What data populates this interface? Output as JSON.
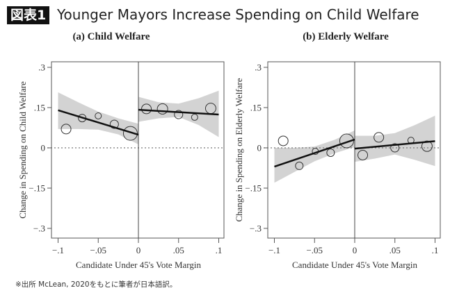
{
  "figure": {
    "badge": "図表1",
    "title": "Younger Mayors Increase Spending on Child Welfare",
    "footnote": "※出所 McLean, 2020をもとに筆者が日本語訳。"
  },
  "chart_data": [
    {
      "type": "scatter",
      "title": "(a) Child Welfare",
      "xlabel": "Candidate Under 45's Vote Margin",
      "ylabel": "Change in Spending on Child Welfare",
      "xlim": [
        -0.1,
        0.1
      ],
      "ylim": [
        -0.3,
        0.3
      ],
      "xticks": [
        -0.1,
        -0.05,
        0,
        0.05,
        0.1
      ],
      "xtick_labels": [
        "−.1",
        "−.05",
        "0",
        ".05",
        ".1"
      ],
      "yticks": [
        0.3,
        0.15,
        0,
        -0.15,
        -0.3
      ],
      "ytick_labels": [
        ".3",
        ".15",
        "0",
        "−.15",
        "−.3"
      ],
      "grid": false,
      "cutoff": 0,
      "points": [
        {
          "x": -0.09,
          "y": 0.07,
          "size": 7
        },
        {
          "x": -0.07,
          "y": 0.111,
          "size": 5.5
        },
        {
          "x": -0.05,
          "y": 0.119,
          "size": 4.5
        },
        {
          "x": -0.03,
          "y": 0.088,
          "size": 6
        },
        {
          "x": -0.01,
          "y": 0.054,
          "size": 10
        },
        {
          "x": 0.01,
          "y": 0.145,
          "size": 7
        },
        {
          "x": 0.03,
          "y": 0.145,
          "size": 7.5
        },
        {
          "x": 0.05,
          "y": 0.124,
          "size": 6
        },
        {
          "x": 0.07,
          "y": 0.114,
          "size": 4.5
        },
        {
          "x": 0.09,
          "y": 0.147,
          "size": 7.5
        }
      ],
      "fits": [
        {
          "x": [
            -0.1,
            0
          ],
          "y": [
            0.14,
            0.049
          ]
        },
        {
          "x": [
            0,
            0.1
          ],
          "y": [
            0.142,
            0.124
          ]
        }
      ],
      "ci_bands": [
        {
          "x": [
            -0.1,
            -0.075,
            -0.05,
            -0.025,
            0
          ],
          "upper": [
            0.207,
            0.17,
            0.135,
            0.11,
            0.09
          ],
          "lower": [
            0.07,
            0.07,
            0.068,
            0.05,
            0.013
          ]
        },
        {
          "x": [
            0,
            0.025,
            0.05,
            0.075,
            0.1
          ],
          "upper": [
            0.19,
            0.17,
            0.165,
            0.185,
            0.213
          ],
          "lower": [
            0.097,
            0.11,
            0.115,
            0.085,
            0.04
          ]
        }
      ]
    },
    {
      "type": "scatter",
      "title": "(b) Elderly Welfare",
      "xlabel": "Candidate Under 45's Vote Margin",
      "ylabel": "Change in Spending on Elderly Welfare",
      "xlim": [
        -0.1,
        0.1
      ],
      "ylim": [
        -0.3,
        0.3
      ],
      "xticks": [
        -0.1,
        -0.05,
        0,
        0.05,
        0.1
      ],
      "xtick_labels": [
        "−.1",
        "−.05",
        "0",
        ".05",
        ".1"
      ],
      "yticks": [
        0.3,
        0.15,
        0,
        -0.15,
        -0.3
      ],
      "ytick_labels": [
        ".3",
        ".15",
        "0",
        "−.15",
        "−.3"
      ],
      "grid": false,
      "cutoff": 0,
      "points": [
        {
          "x": -0.089,
          "y": 0.026,
          "size": 7
        },
        {
          "x": -0.069,
          "y": -0.067,
          "size": 5.5
        },
        {
          "x": -0.049,
          "y": -0.013,
          "size": 4.5
        },
        {
          "x": -0.03,
          "y": -0.018,
          "size": 5.5
        },
        {
          "x": -0.01,
          "y": 0.026,
          "size": 10
        },
        {
          "x": 0.01,
          "y": -0.027,
          "size": 7
        },
        {
          "x": 0.03,
          "y": 0.039,
          "size": 7
        },
        {
          "x": 0.05,
          "y": 0.0,
          "size": 6
        },
        {
          "x": 0.07,
          "y": 0.028,
          "size": 4.5
        },
        {
          "x": 0.09,
          "y": 0.006,
          "size": 7.5
        }
      ],
      "fits": [
        {
          "x": [
            -0.1,
            0
          ],
          "y": [
            -0.07,
            0.031
          ]
        },
        {
          "x": [
            0,
            0.1
          ],
          "y": [
            -0.003,
            0.025
          ]
        }
      ],
      "ci_bands": [
        {
          "x": [
            -0.1,
            -0.075,
            -0.05,
            -0.025,
            0
          ],
          "upper": [
            0.0,
            0.0,
            0.005,
            0.03,
            0.065
          ],
          "lower": [
            -0.13,
            -0.09,
            -0.05,
            -0.02,
            0.003
          ]
        },
        {
          "x": [
            0,
            0.025,
            0.05,
            0.075,
            0.1
          ],
          "upper": [
            0.045,
            0.045,
            0.055,
            0.085,
            0.12
          ],
          "lower": [
            -0.052,
            -0.04,
            -0.025,
            -0.045,
            -0.068
          ]
        }
      ]
    }
  ]
}
